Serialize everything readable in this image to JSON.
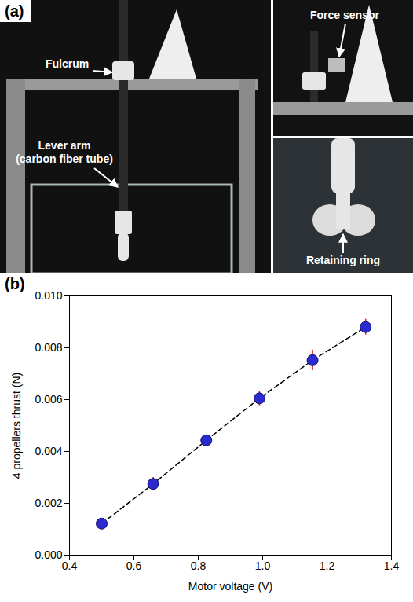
{
  "panel_a": {
    "panel_label": "(a)",
    "labels": {
      "fulcrum": "Fulcrum",
      "lever_arm": [
        "Lever arm",
        "(carbon fiber tube)"
      ],
      "force_sensor": "Force sensor",
      "retaining_ring": "Retaining ring"
    }
  },
  "chart_data": {
    "type": "scatter",
    "panel_label": "(b)",
    "x_label": "Motor voltage (V)",
    "y_label": "4 propellers thrust (N)",
    "x": [
      0.5,
      0.66,
      0.825,
      0.99,
      1.155,
      1.32
    ],
    "values": [
      0.00122,
      0.00275,
      0.00443,
      0.00605,
      0.00752,
      0.0088
    ],
    "errors": [
      0.0001,
      0.00025,
      0.00018,
      0.00028,
      0.0004,
      0.0003
    ],
    "color": "#2a2ad0",
    "marker": "circle",
    "line_style": "dashed",
    "xlim": [
      0.4,
      1.4
    ],
    "xticks": [
      0.4,
      0.6,
      0.8,
      {
        "value": 1.0,
        "label": "1.0"
      },
      1.2,
      1.4
    ],
    "ylim": [
      0,
      0.01
    ],
    "yticks": [
      {
        "value": 0,
        "label": "0.000"
      },
      {
        "value": 0.002,
        "label": "0.002"
      },
      {
        "value": 0.004,
        "label": "0.004"
      },
      {
        "value": 0.006,
        "label": "0.006"
      },
      {
        "value": 0.008,
        "label": "0.008"
      },
      {
        "value": 0.01,
        "label": "0.010"
      }
    ],
    "grid": false
  }
}
